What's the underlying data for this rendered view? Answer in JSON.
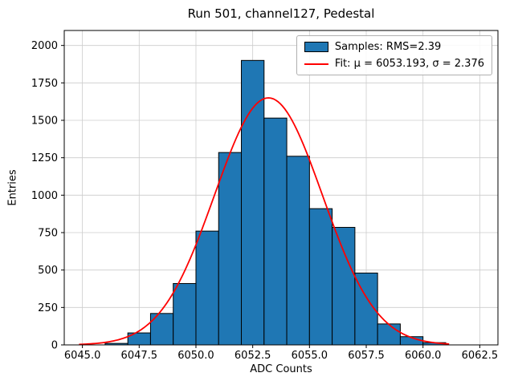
{
  "chart_data": {
    "type": "bar",
    "subtype": "histogram",
    "title": "Run 501, channel127, Pedestal",
    "xlabel": "ADC Counts",
    "ylabel": "Entries",
    "xlim": [
      6044.2,
      6063.3
    ],
    "ylim": [
      0,
      2100
    ],
    "xticks": [
      6045.0,
      6047.5,
      6050.0,
      6052.5,
      6055.0,
      6057.5,
      6060.0,
      6062.5
    ],
    "xtick_labels": [
      "6045.0",
      "6047.5",
      "6050.0",
      "6052.5",
      "6055.0",
      "6057.5",
      "6060.0",
      "6062.5"
    ],
    "yticks": [
      0,
      250,
      500,
      750,
      1000,
      1250,
      1500,
      1750,
      2000
    ],
    "ytick_labels": [
      "0",
      "250",
      "500",
      "750",
      "1000",
      "1250",
      "1500",
      "1750",
      "2000"
    ],
    "grid": true,
    "grid_color": "#cccccc",
    "legend_position": "upper right",
    "bin_width": 1,
    "bin_left_edges": [
      6046,
      6047,
      6048,
      6049,
      6050,
      6051,
      6052,
      6053,
      6054,
      6055,
      6056,
      6057,
      6058,
      6059,
      6060
    ],
    "counts": [
      10,
      80,
      210,
      410,
      760,
      1285,
      1900,
      1515,
      1260,
      910,
      785,
      480,
      140,
      55,
      15
    ],
    "bar_color": "#1f77b4",
    "bar_edge_color": "#000000",
    "fit": {
      "mu": 6053.193,
      "sigma": 2.376,
      "amplitude": 1650,
      "color": "#ff0000",
      "x_start": 6044.85,
      "x_end": 6061.15
    },
    "legend": {
      "samples_label": "Samples: RMS=2.39",
      "fit_label": "Fit: μ = 6053.193, σ = 2.376"
    }
  }
}
